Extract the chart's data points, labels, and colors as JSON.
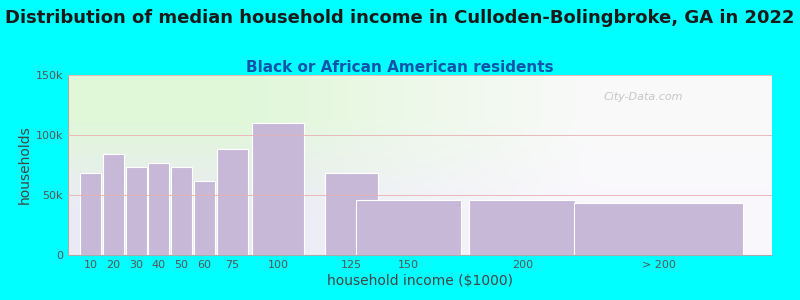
{
  "title": "Distribution of median household income in Culloden-Bolingbroke, GA in 2022",
  "subtitle": "Black or African American residents",
  "xlabel": "household income ($1000)",
  "ylabel": "households",
  "bar_labels": [
    "10",
    "20",
    "30",
    "40",
    "50",
    "60",
    "75",
    "100",
    "125",
    "150",
    "200",
    "> 200"
  ],
  "bar_values": [
    68000,
    84000,
    73000,
    77000,
    73000,
    62000,
    88000,
    110000,
    68000,
    46000,
    46000,
    43000
  ],
  "bar_color": "#c8b8d8",
  "bar_edgecolor": "#ffffff",
  "background_color": "#00ffff",
  "ylim": [
    0,
    150000
  ],
  "yticks": [
    0,
    50000,
    100000,
    150000
  ],
  "ytick_labels": [
    "0",
    "50k",
    "100k",
    "150k"
  ],
  "title_fontsize": 13,
  "subtitle_fontsize": 11,
  "axis_label_fontsize": 10,
  "watermark": "City-Data.com",
  "bar_widths": [
    10,
    10,
    10,
    10,
    10,
    10,
    15,
    25,
    25,
    50,
    50,
    80
  ],
  "bar_lefts": [
    5,
    15,
    25,
    35,
    45,
    55,
    65,
    80,
    112.5,
    125,
    175,
    220
  ],
  "xlim": [
    0,
    310
  ]
}
